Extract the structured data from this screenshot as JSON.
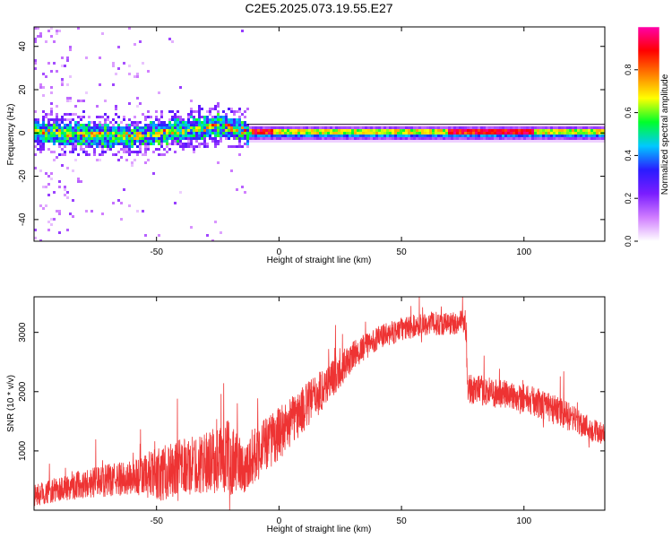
{
  "title": "C2E5.2025.073.19.55.E27",
  "chart_data": [
    {
      "type": "heatmap",
      "xlabel": "Height of straight line (km)",
      "ylabel": "Frequency (Hz)",
      "xlim": [
        -100,
        133
      ],
      "ylim": [
        -50,
        49
      ],
      "xticks": [
        "-50",
        "0",
        "50",
        "100"
      ],
      "xtick_values": [
        -50,
        0,
        50,
        100
      ],
      "yticks": [
        "40",
        "20",
        "0",
        "-20",
        "-40"
      ],
      "ytick_values": [
        40,
        20,
        0,
        -20,
        -40
      ],
      "colorbar": {
        "label": "Normalized spectral amplitude",
        "ticks": [
          "0.0",
          "0.2",
          "0.4",
          "0.6",
          "0.8"
        ],
        "tick_values": [
          0.0,
          0.2,
          0.4,
          0.6,
          0.8
        ],
        "range": [
          0,
          1
        ],
        "colors": [
          "#ffffff",
          "#d07dff",
          "#7a1dff",
          "#2a1cff",
          "#00c8ff",
          "#00ff2a",
          "#ffff00",
          "#ff7f00",
          "#ff0000",
          "#ff00aa"
        ]
      },
      "ridge": {
        "center_freq": 1,
        "segments": [
          {
            "x": [
              -100,
              -60
            ],
            "freq": [
              1,
              -1
            ]
          },
          {
            "x": [
              -60,
              -25
            ],
            "freq": [
              -1,
              4
            ]
          },
          {
            "x": [
              -25,
              -13
            ],
            "freq": [
              4,
              1
            ]
          },
          {
            "x": [
              -13,
              133
            ],
            "freq": [
              1,
              1
            ]
          }
        ]
      }
    },
    {
      "type": "line",
      "xlabel": "Height of straight line (km)",
      "ylabel": "SNR (10 * v/v)",
      "xlim": [
        -100,
        133
      ],
      "ylim": [
        0,
        3600
      ],
      "xticks": [
        "-50",
        "0",
        "50",
        "100"
      ],
      "xtick_values": [
        -50,
        0,
        50,
        100
      ],
      "yticks": [
        "3000",
        "2000",
        "1000"
      ],
      "ytick_values": [
        3000,
        2000,
        1000
      ],
      "color": "#ee3333",
      "envelope": {
        "x": [
          -100,
          -80,
          -60,
          -50,
          -40,
          -30,
          -20,
          -14,
          -10,
          0,
          10,
          20,
          30,
          40,
          50,
          60,
          70,
          76,
          77,
          85,
          100,
          115,
          133
        ],
        "mean": [
          250,
          450,
          550,
          600,
          700,
          800,
          900,
          700,
          950,
          1300,
          1700,
          2150,
          2600,
          2900,
          3050,
          3150,
          3150,
          3200,
          2050,
          2000,
          1900,
          1650,
          1250
        ],
        "spread": [
          180,
          250,
          300,
          450,
          500,
          500,
          650,
          400,
          500,
          450,
          400,
          350,
          250,
          200,
          200,
          200,
          200,
          200,
          250,
          250,
          250,
          250,
          200
        ]
      }
    }
  ]
}
